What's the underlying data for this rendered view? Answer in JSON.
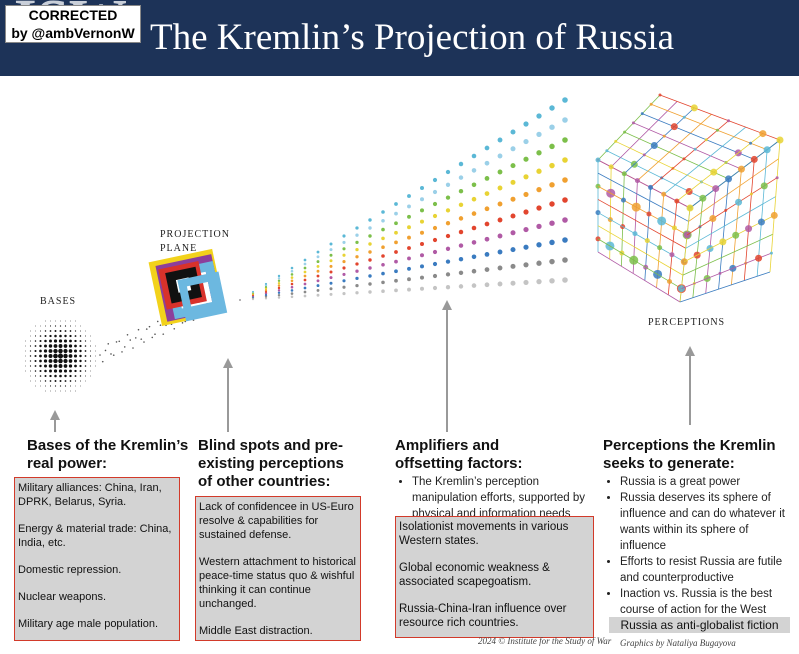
{
  "header": {
    "logo": "ISW",
    "badge": [
      "CORRECTED",
      "by @ambVernonW"
    ],
    "title": "The Kremlin’s Projection of Russia"
  },
  "labels": {
    "bases": "BASES",
    "plane": [
      "PROJECTION",
      "PLANE"
    ],
    "perceptions": "PERCEPTIONS"
  },
  "columns": [
    {
      "heading": "Bases of the Kremlin’s real power:",
      "items": [
        "Military alliances: China, Iran, DPRK, Belarus, Syria.",
        "Energy & material trade: China, India, etc.",
        "Domestic repression.",
        "Nuclear weapons.",
        "Military age male population."
      ]
    },
    {
      "heading": "Blind spots and pre-existing perceptions of other countries:",
      "items": [
        "Lack of confidencee in US-Euro resolve & capabilities for sustained defense.",
        "Western attachment to historical peace-time status quo & wishful thinking it can continue unchanged.",
        "Middle East distraction."
      ]
    },
    {
      "heading": "Amplifiers and offsetting factors:",
      "bullets": [
        "The Kremlin’s perception manipulation efforts, supported by physical and information needs"
      ],
      "items": [
        "Isolationist movements in various Western states.",
        "Global economic weakness & associated scapegoatism.",
        "Russia-China-Iran influence over resource rich countries."
      ]
    },
    {
      "heading": "Perceptions the Kremlin seeks to generate:",
      "bullets": [
        "Russia is a great power",
        "Russia deserves its sphere of influence and can do whatever it wants within its sphere of influence",
        "Efforts to resist Russia are futile and counterproductive",
        "Inaction vs. Russia is the best course of action for the West"
      ],
      "overlay": "Russia as anti-globalist fiction"
    }
  ],
  "footer": {
    "copyright": "2024 © Institute for the Study of War",
    "credit": "Graphics by Nataliya Bugayova"
  }
}
